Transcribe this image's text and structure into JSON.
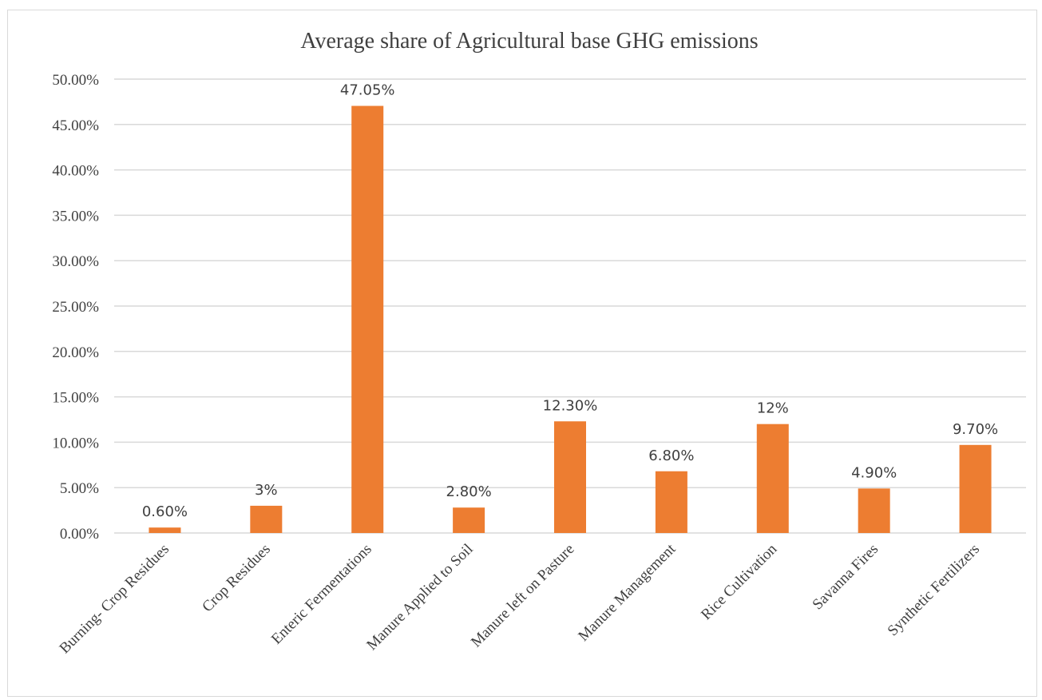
{
  "chart_data": {
    "type": "bar",
    "title": "Average share of Agricultural base GHG emissions",
    "xlabel": "",
    "ylabel": "",
    "ylim": [
      0,
      50
    ],
    "yticks": [
      0,
      5,
      10,
      15,
      20,
      25,
      30,
      35,
      40,
      45,
      50
    ],
    "ytick_labels": [
      "0.00%",
      "5.00%",
      "10.00%",
      "15.00%",
      "20.00%",
      "25.00%",
      "30.00%",
      "35.00%",
      "40.00%",
      "45.00%",
      "50.00%"
    ],
    "grid": true,
    "legend": "none",
    "bar_color": "#ED7D31",
    "categories": [
      "Burning- Crop Residues",
      "Crop Residues",
      "Enteric Fermentations",
      "Manure Applied to Soil",
      "Manure left on Pasture",
      "Manure Management",
      "Rice Cultivation",
      "Savanna Fires",
      "Synthetic Fertilizers"
    ],
    "values": [
      0.6,
      3,
      47.05,
      2.8,
      12.3,
      6.8,
      12,
      4.9,
      9.7
    ],
    "data_labels": [
      "0.60%",
      "3%",
      "47.05%",
      "2.80%",
      "12.30%",
      "6.80%",
      "12%",
      "4.90%",
      "9.70%"
    ]
  }
}
